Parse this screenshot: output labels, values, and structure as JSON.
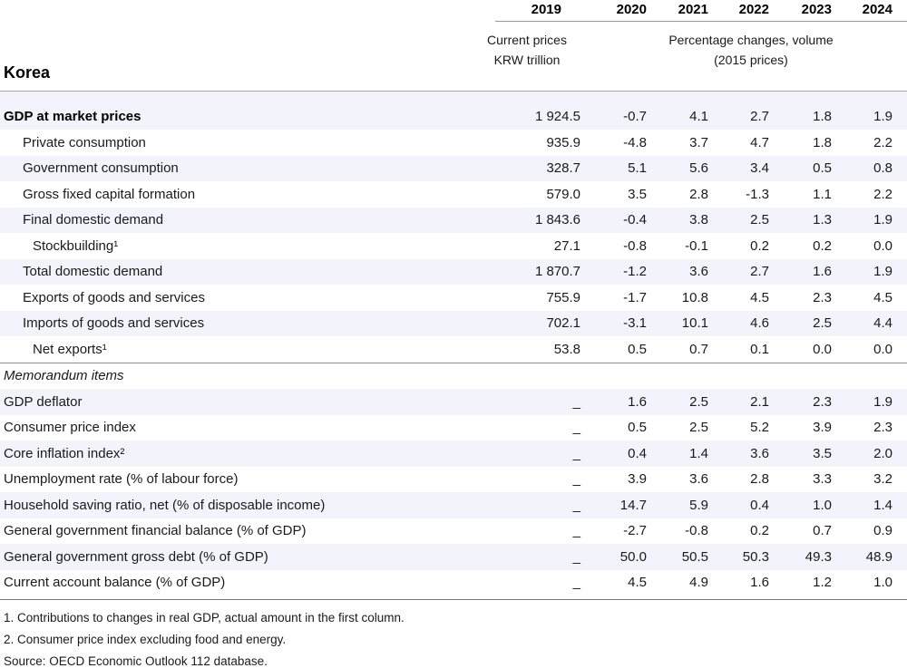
{
  "header": {
    "title": "Korea",
    "years": [
      "2019",
      "2020",
      "2021",
      "2022",
      "2023",
      "2024"
    ],
    "col2019_subheader": [
      "Current prices",
      "KRW trillion"
    ],
    "pct_subheader": [
      "Percentage changes, volume",
      "(2015 prices)"
    ]
  },
  "colors": {
    "row_shade": "#f3f3fb",
    "rule_gray": "#8f8f8f"
  },
  "table": {
    "rows": [
      {
        "label": "GDP at market prices",
        "indent": 0,
        "bold": true,
        "shaded": true,
        "tall": true,
        "values": [
          "1 924.5",
          "-0.7",
          "4.1",
          "2.7",
          "1.8",
          "1.9"
        ]
      },
      {
        "label": "Private consumption",
        "indent": 1,
        "shaded": false,
        "values": [
          "935.9",
          "-4.8",
          "3.7",
          "4.7",
          "1.8",
          "2.2"
        ]
      },
      {
        "label": "Government consumption",
        "indent": 1,
        "shaded": true,
        "values": [
          "328.7",
          "5.1",
          "5.6",
          "3.4",
          "0.5",
          "0.8"
        ]
      },
      {
        "label": "Gross fixed capital formation",
        "indent": 1,
        "shaded": false,
        "values": [
          "579.0",
          "3.5",
          "2.8",
          "-1.3",
          "1.1",
          "2.2"
        ]
      },
      {
        "label": "Final domestic demand",
        "indent": 1,
        "shaded": true,
        "values": [
          "1 843.6",
          "-0.4",
          "3.8",
          "2.5",
          "1.3",
          "1.9"
        ]
      },
      {
        "label": "Stockbuilding¹",
        "indent": 2,
        "shaded": false,
        "values": [
          "27.1",
          "-0.8",
          "-0.1",
          "0.2",
          "0.2",
          "0.0"
        ]
      },
      {
        "label": "Total domestic demand",
        "indent": 1,
        "shaded": true,
        "values": [
          "1 870.7",
          "-1.2",
          "3.6",
          "2.7",
          "1.6",
          "1.9"
        ]
      },
      {
        "label": "Exports of goods and services",
        "indent": 1,
        "shaded": false,
        "values": [
          "755.9",
          "-1.7",
          "10.8",
          "4.5",
          "2.3",
          "4.5"
        ]
      },
      {
        "label": "Imports of goods and services",
        "indent": 1,
        "shaded": true,
        "values": [
          "702.1",
          "-3.1",
          "10.1",
          "4.6",
          "2.5",
          "4.4"
        ]
      },
      {
        "label": "Net exports¹",
        "indent": 2,
        "shaded": false,
        "values": [
          "53.8",
          "0.5",
          "0.7",
          "0.1",
          "0.0",
          "0.0"
        ]
      },
      {
        "label": "Memorandum items",
        "indent": 0,
        "italic": true,
        "shaded": false,
        "rule_above": true,
        "values": [
          "",
          "",
          "",
          "",
          "",
          ""
        ]
      },
      {
        "label": "GDP deflator",
        "indent": 0,
        "shaded": true,
        "values": [
          "_",
          "1.6",
          "2.5",
          "2.1",
          "2.3",
          "1.9"
        ]
      },
      {
        "label": "Consumer price index",
        "indent": 0,
        "shaded": false,
        "values": [
          "_",
          "0.5",
          "2.5",
          "5.2",
          "3.9",
          "2.3"
        ]
      },
      {
        "label": "Core inflation index²",
        "indent": 0,
        "shaded": true,
        "values": [
          "_",
          "0.4",
          "1.4",
          "3.6",
          "3.5",
          "2.0"
        ]
      },
      {
        "label": "Unemployment rate (% of labour force)",
        "indent": 0,
        "shaded": false,
        "values": [
          "_",
          "3.9",
          "3.6",
          "2.8",
          "3.3",
          "3.2"
        ]
      },
      {
        "label": "Household saving ratio, net (% of disposable income)",
        "indent": 0,
        "shaded": true,
        "values": [
          "_",
          "14.7",
          "5.9",
          "0.4",
          "1.0",
          "1.4"
        ]
      },
      {
        "label": "General government financial balance (% of GDP)",
        "indent": 0,
        "shaded": false,
        "values": [
          "_",
          "-2.7",
          "-0.8",
          "0.2",
          "0.7",
          "0.9"
        ]
      },
      {
        "label": "General government gross debt (% of GDP)",
        "indent": 0,
        "shaded": true,
        "values": [
          "_",
          "50.0",
          "50.5",
          "50.3",
          "49.3",
          "48.9"
        ]
      },
      {
        "label": "Current account balance (% of GDP)",
        "indent": 0,
        "shaded": false,
        "values": [
          "_",
          "4.5",
          "4.9",
          "1.6",
          "1.2",
          "1.0"
        ]
      }
    ]
  },
  "footnotes": [
    "1. Contributions to changes in real GDP, actual amount in the first column.",
    "2. Consumer price index excluding food and energy.",
    "Source: OECD Economic Outlook 112 database."
  ]
}
